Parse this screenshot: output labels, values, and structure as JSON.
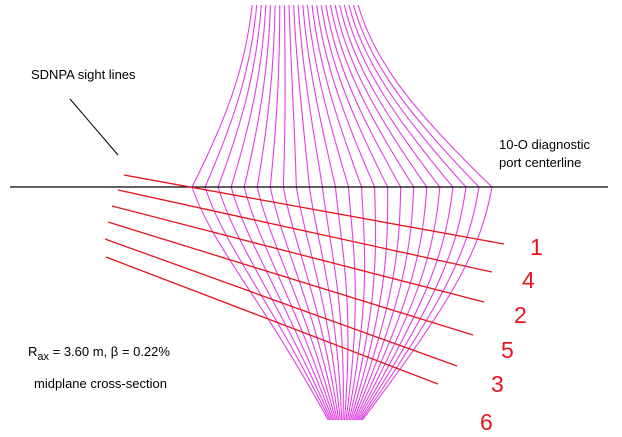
{
  "annotations": {
    "sight_lines_label": "SDNPA sight lines",
    "port_label_line1": "10-O diagnostic",
    "port_label_line2": "port  centerline",
    "rax_prefix": "R",
    "rax_subscript": "ax",
    "rax_rest": " = 3.60 m, β = 0.22%",
    "section_label": "midplane cross-section"
  },
  "sight_lines": [
    {
      "id": "1",
      "label": "1"
    },
    {
      "id": "4",
      "label": "4"
    },
    {
      "id": "2",
      "label": "2"
    },
    {
      "id": "5",
      "label": "5"
    },
    {
      "id": "3",
      "label": "3"
    },
    {
      "id": "6",
      "label": "6"
    }
  ],
  "flux_surface_count": 24,
  "colors": {
    "flux_surfaces": "#e040e0",
    "sight_lines": "#e8131b",
    "sight_line_numbers": "#e8131b",
    "centerline": "#000000",
    "text": "#000000"
  }
}
